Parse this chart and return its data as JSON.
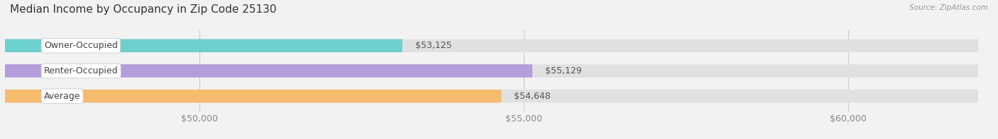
{
  "title": "Median Income by Occupancy in Zip Code 25130",
  "source": "Source: ZipAtlas.com",
  "categories": [
    "Owner-Occupied",
    "Renter-Occupied",
    "Average"
  ],
  "values": [
    53125,
    55129,
    54648
  ],
  "bar_colors": [
    "#6ecfcf",
    "#b39ddb",
    "#f5bc6e"
  ],
  "background_color": "#f2f2f2",
  "bar_bg_color": "#e0e0e0",
  "xlim": [
    47000,
    62000
  ],
  "xticks": [
    50000,
    55000,
    60000
  ],
  "xtick_labels": [
    "$50,000",
    "$55,000",
    "$60,000"
  ],
  "value_labels": [
    "$53,125",
    "$55,129",
    "$54,648"
  ],
  "title_fontsize": 11,
  "tick_fontsize": 9,
  "bar_label_fontsize": 9,
  "cat_fontsize": 9
}
